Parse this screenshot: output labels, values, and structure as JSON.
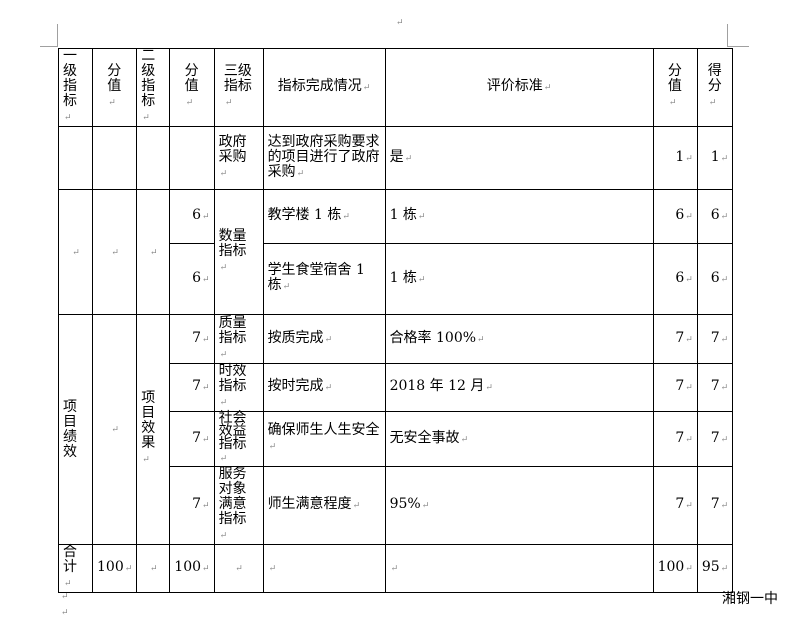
{
  "header": [
    "一级指标",
    "分值",
    "二级指标",
    "分值",
    "三级指标",
    "指标完成情况",
    "评价标准",
    "分值",
    "得分"
  ],
  "rows": {
    "r1": {
      "level3": "政府采购",
      "completion": "达到政府采购要求的项目进行了政府采购",
      "standard": "是",
      "score_value": "1",
      "score": "1"
    },
    "r2": {
      "value2": "6",
      "level3": "数量指标",
      "completion": "教学楼 1 栋",
      "standard": "1 栋",
      "score_value": "6",
      "score": "6"
    },
    "r3": {
      "value2": "6",
      "completion": "学生食堂宿舍 1 栋",
      "standard": "1 栋",
      "score_value": "6",
      "score": "6"
    },
    "r4": {
      "level1": "项目绩效",
      "level2": "项目效果",
      "value2": "7",
      "level3": "质量指标",
      "completion": "按质完成",
      "standard": "合格率 100%",
      "score_value": "7",
      "score": "7"
    },
    "r5": {
      "value2": "7",
      "level3": "时效指标",
      "completion": "按时完成",
      "standard": "2018 年 12 月",
      "score_value": "7",
      "score": "7"
    },
    "r6": {
      "value2": "7",
      "level3": "社会效益指标",
      "completion": "确保师生人生安全",
      "standard": "无安全事故",
      "score_value": "7",
      "score": "7"
    },
    "r7": {
      "value2": "7",
      "level3": "服务对象满意指标",
      "completion": "师生满意程度",
      "standard": "95%",
      "score_value": "7",
      "score": "7"
    }
  },
  "total": {
    "label": "合计",
    "value1": "100",
    "value2": "100",
    "score_value": "100",
    "score": "95"
  },
  "footer": "湘钢一中"
}
